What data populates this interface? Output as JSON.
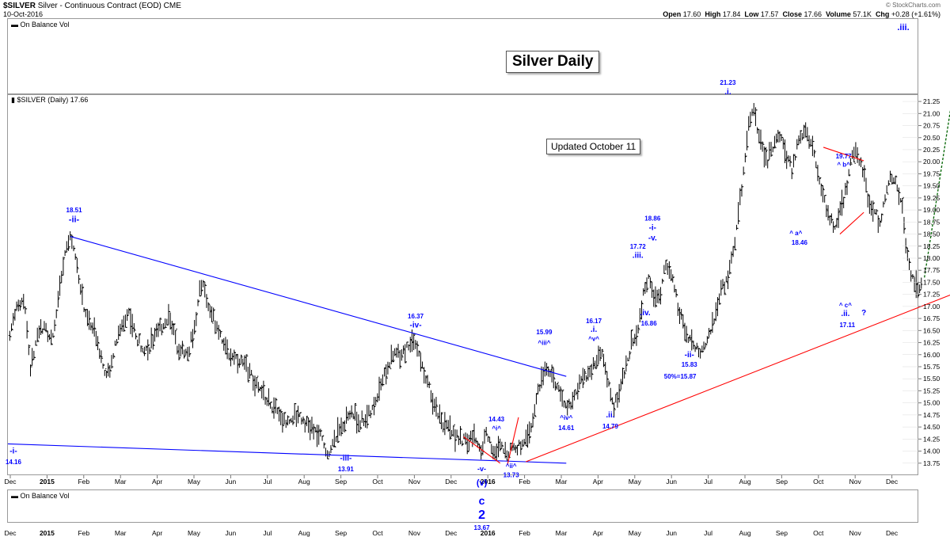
{
  "header": {
    "title_symbol": "$SILVER",
    "title_desc": "Silver - Continuous Contract (EOD) CME",
    "date": "10-Oct-2016",
    "open_label": "Open",
    "open": "17.60",
    "high_label": "High",
    "high": "17.84",
    "low_label": "Low",
    "low": "17.57",
    "close_label": "Close",
    "close": "17.66",
    "volume_label": "Volume",
    "volume": "57.1K",
    "chg_label": "Chg",
    "chg": "+0.28 (+1.61%)",
    "watermark": "© StockCharts.com"
  },
  "panels": {
    "obv_top": "On Balance Vol",
    "price_legend": "$SILVER (Daily) 17.66",
    "obv_bottom": "On Balance Vol"
  },
  "boxes": {
    "title": "Silver Daily",
    "updated": "Updated October 11"
  },
  "chart_data": {
    "type": "ohlc",
    "series_name": "$SILVER (Daily)",
    "ylim": [
      13.5,
      21.35
    ],
    "y_ticks": [
      "21.25",
      "21.00",
      "20.75",
      "20.50",
      "20.25",
      "20.00",
      "19.75",
      "19.50",
      "19.25",
      "19.00",
      "18.75",
      "18.50",
      "18.25",
      "18.00",
      "17.75",
      "17.50",
      "17.25",
      "17.00",
      "16.75",
      "16.50",
      "16.25",
      "16.00",
      "15.75",
      "15.50",
      "15.25",
      "15.00",
      "14.75",
      "14.50",
      "14.25",
      "14.00",
      "13.75"
    ],
    "x_ticks_top": [
      {
        "label": "Dec",
        "month": 0
      },
      {
        "label": "2015",
        "month": 1,
        "bold": true
      },
      {
        "label": "Feb",
        "month": 2
      },
      {
        "label": "Mar",
        "month": 3
      },
      {
        "label": "Apr",
        "month": 4
      },
      {
        "label": "May",
        "month": 5
      },
      {
        "label": "Jun",
        "month": 6
      },
      {
        "label": "Jul",
        "month": 7
      },
      {
        "label": "Aug",
        "month": 8
      },
      {
        "label": "Sep",
        "month": 9
      },
      {
        "label": "Oct",
        "month": 10
      },
      {
        "label": "Nov",
        "month": 11
      },
      {
        "label": "Dec",
        "month": 12
      },
      {
        "label": "2016",
        "month": 13,
        "bold": true
      },
      {
        "label": "Feb",
        "month": 14
      },
      {
        "label": "Mar",
        "month": 15
      },
      {
        "label": "Apr",
        "month": 16
      },
      {
        "label": "May",
        "month": 17
      },
      {
        "label": "Jun",
        "month": 18
      },
      {
        "label": "Jul",
        "month": 19
      },
      {
        "label": "Aug",
        "month": 20
      },
      {
        "label": "Sep",
        "month": 21
      },
      {
        "label": "Oct",
        "month": 22
      },
      {
        "label": "Nov",
        "month": 23
      },
      {
        "label": "Dec",
        "month": 24
      }
    ],
    "path_points": [
      [
        0.05,
        16.4
      ],
      [
        0.2,
        16.9
      ],
      [
        0.45,
        17.2
      ],
      [
        0.6,
        15.7
      ],
      [
        0.8,
        16.3
      ],
      [
        1.0,
        16.7
      ],
      [
        1.2,
        16.2
      ],
      [
        1.4,
        17.3
      ],
      [
        1.6,
        18.3
      ],
      [
        1.72,
        18.45
      ],
      [
        1.9,
        17.8
      ],
      [
        2.1,
        16.8
      ],
      [
        2.4,
        16.4
      ],
      [
        2.7,
        15.5
      ],
      [
        3.0,
        16.4
      ],
      [
        3.3,
        16.9
      ],
      [
        3.5,
        16.3
      ],
      [
        3.8,
        16.1
      ],
      [
        4.1,
        16.5
      ],
      [
        4.4,
        16.8
      ],
      [
        4.6,
        16.2
      ],
      [
        4.9,
        16.0
      ],
      [
        5.1,
        16.7
      ],
      [
        5.3,
        17.6
      ],
      [
        5.45,
        17.0
      ],
      [
        5.7,
        16.6
      ],
      [
        6.0,
        16.0
      ],
      [
        6.3,
        15.9
      ],
      [
        6.6,
        15.6
      ],
      [
        6.9,
        15.2
      ],
      [
        7.2,
        14.9
      ],
      [
        7.6,
        14.6
      ],
      [
        7.9,
        14.8
      ],
      [
        8.2,
        14.5
      ],
      [
        8.5,
        14.3
      ],
      [
        8.7,
        13.95
      ],
      [
        9.0,
        14.4
      ],
      [
        9.3,
        14.8
      ],
      [
        9.6,
        14.6
      ],
      [
        9.9,
        14.8
      ],
      [
        10.2,
        15.5
      ],
      [
        10.5,
        16.0
      ],
      [
        10.8,
        16.1
      ],
      [
        11.05,
        16.35
      ],
      [
        11.3,
        15.7
      ],
      [
        11.6,
        15.0
      ],
      [
        11.9,
        14.5
      ],
      [
        12.2,
        14.3
      ],
      [
        12.5,
        14.2
      ],
      [
        12.7,
        14.3
      ],
      [
        12.9,
        14.0
      ],
      [
        13.0,
        14.4
      ],
      [
        13.1,
        14.25
      ],
      [
        13.25,
        13.9
      ],
      [
        13.4,
        14.1
      ],
      [
        13.55,
        13.95
      ],
      [
        13.7,
        14.1
      ],
      [
        13.85,
        14.05
      ],
      [
        14.0,
        14.2
      ],
      [
        14.2,
        14.4
      ],
      [
        14.4,
        15.1
      ],
      [
        14.65,
        15.8
      ],
      [
        14.9,
        15.4
      ],
      [
        15.2,
        14.9
      ],
      [
        15.4,
        15.1
      ],
      [
        15.6,
        15.4
      ],
      [
        15.8,
        15.6
      ],
      [
        16.0,
        15.8
      ],
      [
        16.15,
        16.1
      ],
      [
        16.3,
        15.5
      ],
      [
        16.5,
        14.9
      ],
      [
        16.7,
        15.4
      ],
      [
        16.85,
        15.8
      ],
      [
        17.0,
        16.3
      ],
      [
        17.15,
        16.5
      ],
      [
        17.3,
        17.2
      ],
      [
        17.45,
        17.7
      ],
      [
        17.6,
        17.1
      ],
      [
        17.75,
        17.2
      ],
      [
        17.9,
        17.9
      ],
      [
        18.1,
        17.5
      ],
      [
        18.3,
        16.8
      ],
      [
        18.5,
        16.4
      ],
      [
        18.7,
        16.2
      ],
      [
        18.85,
        16.0
      ],
      [
        19.0,
        16.3
      ],
      [
        19.2,
        16.6
      ],
      [
        19.4,
        17.3
      ],
      [
        19.6,
        17.6
      ],
      [
        19.8,
        18.4
      ],
      [
        20.0,
        19.6
      ],
      [
        20.15,
        20.7
      ],
      [
        20.3,
        21.1
      ],
      [
        20.45,
        20.5
      ],
      [
        20.65,
        20.0
      ],
      [
        20.85,
        20.3
      ],
      [
        21.0,
        20.6
      ],
      [
        21.2,
        20.1
      ],
      [
        21.35,
        19.8
      ],
      [
        21.5,
        20.4
      ],
      [
        21.7,
        20.7
      ],
      [
        21.9,
        20.3
      ],
      [
        22.1,
        19.6
      ],
      [
        22.3,
        19.0
      ],
      [
        22.5,
        18.6
      ],
      [
        22.7,
        19.1
      ],
      [
        22.85,
        19.5
      ],
      [
        23.0,
        20.2
      ],
      [
        23.15,
        20.1
      ],
      [
        23.3,
        19.8
      ],
      [
        23.45,
        19.1
      ],
      [
        23.6,
        19.0
      ],
      [
        23.75,
        18.7
      ],
      [
        23.9,
        19.3
      ],
      [
        24.05,
        19.7
      ],
      [
        24.2,
        19.5
      ],
      [
        24.35,
        19.0
      ],
      [
        24.5,
        17.9
      ],
      [
        24.65,
        17.5
      ],
      [
        24.8,
        17.3
      ],
      [
        24.9,
        17.6
      ]
    ],
    "trendlines": [
      {
        "color": "#0000ff",
        "from": [
          1.7,
          18.45
        ],
        "to": [
          15.2,
          15.55
        ]
      },
      {
        "color": "#0000ff",
        "from": [
          0.0,
          14.15
        ],
        "to": [
          15.2,
          13.75
        ]
      },
      {
        "color": "#ff0000",
        "from": [
          14.1,
          13.78
        ],
        "to": [
          26.7,
          17.55
        ]
      },
      {
        "color": "#ff0000",
        "from": [
          13.9,
          14.7
        ],
        "to": [
          13.6,
          13.72
        ]
      },
      {
        "color": "#ff0000",
        "from": [
          12.4,
          14.3
        ],
        "to": [
          13.4,
          13.75
        ]
      },
      {
        "color": "#ff0000",
        "from": [
          22.2,
          20.3
        ],
        "to": [
          23.3,
          20.02
        ]
      },
      {
        "color": "#ff0000",
        "from": [
          22.65,
          18.5
        ],
        "to": [
          23.3,
          18.95
        ]
      }
    ],
    "projection": {
      "color": "#006400",
      "from": [
        24.95,
        17.6
      ],
      "to": [
        25.95,
        21.17
      ]
    },
    "wave_labels": [
      {
        "t": "-i-",
        "m": 0.15,
        "v": 13.95,
        "size": 10
      },
      {
        "t": "14.16",
        "m": 0.15,
        "v": 13.73,
        "size": 8
      },
      {
        "t": "18.51",
        "m": 1.8,
        "v": 18.95,
        "size": 8
      },
      {
        "t": "-ii-",
        "m": 1.8,
        "v": 18.75,
        "size": 11
      },
      {
        "t": "-iii-",
        "m": 9.2,
        "v": 13.8,
        "size": 10
      },
      {
        "t": "13.91",
        "m": 9.2,
        "v": 13.58,
        "size": 8
      },
      {
        "t": "16.37",
        "m": 11.1,
        "v": 16.75,
        "size": 8
      },
      {
        "t": "-iv-",
        "m": 11.1,
        "v": 16.56,
        "size": 10
      },
      {
        "t": "14.43",
        "m": 13.3,
        "v": 14.62,
        "size": 8
      },
      {
        "t": "^i^",
        "m": 13.3,
        "v": 14.43,
        "size": 8
      },
      {
        "t": "-v-",
        "m": 12.9,
        "v": 13.58,
        "size": 9
      },
      {
        "t": "^ii^",
        "m": 13.7,
        "v": 13.65,
        "size": 8
      },
      {
        "t": "13.73",
        "m": 13.7,
        "v": 13.46,
        "size": 8
      },
      {
        "t": "15.99",
        "m": 14.6,
        "v": 16.42,
        "size": 8
      },
      {
        "t": "^iii^",
        "m": 14.6,
        "v": 16.2,
        "size": 8
      },
      {
        "t": "^iv^",
        "m": 15.2,
        "v": 14.65,
        "size": 8
      },
      {
        "t": "14.61",
        "m": 15.2,
        "v": 14.44,
        "size": 8
      },
      {
        "t": "16.17",
        "m": 15.95,
        "v": 16.65,
        "size": 8
      },
      {
        "t": ".i.",
        "m": 15.95,
        "v": 16.47,
        "size": 10
      },
      {
        "t": "^v^",
        "m": 15.95,
        "v": 16.28,
        "size": 8
      },
      {
        "t": ".ii.",
        "m": 16.4,
        "v": 14.7,
        "size": 10
      },
      {
        "t": "14.79",
        "m": 16.4,
        "v": 14.47,
        "size": 8
      },
      {
        "t": "17.72",
        "m": 17.15,
        "v": 18.2,
        "size": 8
      },
      {
        "t": ".iii.",
        "m": 17.15,
        "v": 18.01,
        "size": 10
      },
      {
        "t": "18.86",
        "m": 17.55,
        "v": 18.78,
        "size": 8
      },
      {
        "t": "-i-",
        "m": 17.55,
        "v": 18.58,
        "size": 10
      },
      {
        "t": "-v.",
        "m": 17.55,
        "v": 18.37,
        "size": 10
      },
      {
        "t": ".iv.",
        "m": 17.35,
        "v": 16.82,
        "size": 10
      },
      {
        "t": "16.86",
        "m": 17.45,
        "v": 16.6,
        "size": 8
      },
      {
        "t": "-ii-",
        "m": 18.55,
        "v": 15.95,
        "size": 10
      },
      {
        "t": "15.83",
        "m": 18.55,
        "v": 15.75,
        "size": 8
      },
      {
        "t": "50%=15.87",
        "m": 18.3,
        "v": 15.5,
        "size": 8
      },
      {
        "t": "21.23",
        "m": 19.6,
        "v": 21.6,
        "size": 8
      },
      {
        "t": ".i.",
        "m": 19.6,
        "v": 21.4,
        "size": 10
      },
      {
        "t": "^ a^",
        "m": 21.45,
        "v": 18.48,
        "size": 8
      },
      {
        "t": "18.46",
        "m": 21.55,
        "v": 18.28,
        "size": 8
      },
      {
        "t": "19.77",
        "m": 22.75,
        "v": 20.07,
        "size": 8
      },
      {
        "t": "^ b^",
        "m": 22.75,
        "v": 19.9,
        "size": 8
      },
      {
        "t": "^ c^",
        "m": 22.8,
        "v": 16.98,
        "size": 8
      },
      {
        "t": ".ii.",
        "m": 22.8,
        "v": 16.8,
        "size": 10
      },
      {
        "t": "?",
        "m": 23.3,
        "v": 16.82,
        "size": 10
      },
      {
        "t": "17.11",
        "m": 22.85,
        "v": 16.57,
        "size": 8
      }
    ],
    "low_labels": [
      {
        "t": "(v)",
        "size": 11
      },
      {
        "t": "c",
        "size": 14
      },
      {
        "t": "2",
        "size": 16
      },
      {
        "t": "13.67",
        "size": 8
      }
    ],
    "top_right_label": ".iii."
  }
}
